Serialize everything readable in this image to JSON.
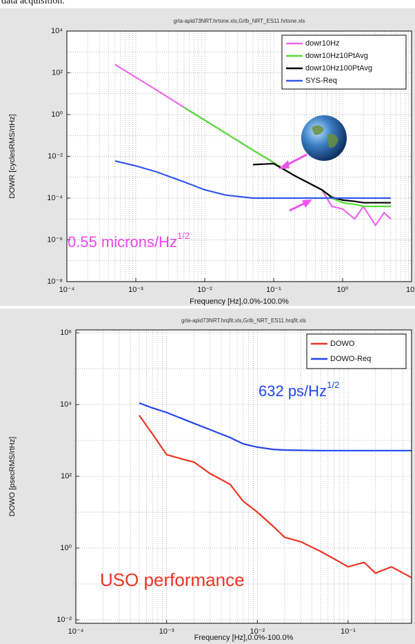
{
  "top_text": "data acquisition.",
  "chart_data": [
    {
      "type": "line",
      "title": "grla-apid73NRT.hrtone.xls,Grlb_NRT_ES11.hrtone.xls",
      "xlabel": "Frequency [Hz],0.0%-100.0%",
      "ylabel": "DOWR [cyclesRMS/rtHz]",
      "xscale": "log",
      "yscale": "log",
      "grid": true,
      "legend": "top-right",
      "xlim": [
        0.0001,
        10
      ],
      "ylim": [
        1e-08,
        10000
      ],
      "xticks": [
        {
          "value": 0.0001,
          "label": "10⁻⁴"
        },
        {
          "value": 0.001,
          "label": "10⁻³"
        },
        {
          "value": 0.01,
          "label": "10⁻²"
        },
        {
          "value": 0.1,
          "label": "10⁻¹"
        },
        {
          "value": 1,
          "label": "10⁰"
        },
        {
          "value": 10,
          "label": "10¹"
        }
      ],
      "yticks": [
        {
          "value": 1e-08,
          "label": "10⁻⁸"
        },
        {
          "value": 1e-06,
          "label": "10⁻⁶"
        },
        {
          "value": 0.0001,
          "label": "10⁻⁴"
        },
        {
          "value": 0.01,
          "label": "10⁻²"
        },
        {
          "value": 1,
          "label": "10⁰"
        },
        {
          "value": 100,
          "label": "10²"
        },
        {
          "value": 10000,
          "label": "10⁴"
        }
      ],
      "x": [
        0.0005,
        0.001,
        0.002,
        0.005,
        0.01,
        0.02,
        0.05,
        0.1,
        0.2,
        0.5,
        0.7,
        1,
        1.5,
        2,
        3,
        4,
        5
      ],
      "series": [
        {
          "name": "dowr10Hz",
          "color": "#ee66ee",
          "values": [
            251,
            61,
            15,
            2.2,
            0.54,
            0.13,
            0.02,
            0.005,
            0.0012,
            0.00025,
            4e-05,
            3e-05,
            1e-05,
            4e-05,
            5e-06,
            2e-05,
            1e-05
          ]
        },
        {
          "name": "dowr10Hz10PtAvg",
          "color": "#55dd33",
          "values": [
            null,
            null,
            null,
            2.2,
            0.54,
            0.13,
            0.02,
            0.005,
            0.0012,
            0.00025,
            0.0001,
            6e-05,
            5e-05,
            4e-05,
            4e-05,
            4e-05,
            4e-05
          ]
        },
        {
          "name": "dowr10Hz100PtAvg",
          "color": "#000000",
          "values": [
            null,
            null,
            null,
            null,
            null,
            null,
            0.004,
            0.0045,
            0.0012,
            0.00025,
            0.00011,
            8e-05,
            7e-05,
            6e-05,
            6e-05,
            6e-05,
            6e-05
          ]
        },
        {
          "name": "SYS-Req",
          "color": "#3355ee",
          "values": [
            0.006,
            0.0035,
            0.0018,
            0.0006,
            0.00025,
            0.00014,
            0.0001,
            0.0001,
            0.0001,
            0.0001,
            0.0001,
            0.0001,
            0.0001,
            0.0001,
            0.0001,
            0.0001,
            0.0001
          ]
        }
      ],
      "annotations": [
        {
          "text": "0.55 microns/Hz",
          "superscript": "1/2",
          "color": "#ee44ee"
        }
      ]
    },
    {
      "type": "line",
      "title": "grla-apid73NRT.hrqfit.xls,Grlb_NRT_ES11.hrqfit.xls",
      "xlabel": "Frequency [Hz],0.0%-100.0%",
      "ylabel": "DOWO [psecRMS/rtHz]",
      "xscale": "log",
      "yscale": "log",
      "grid": true,
      "legend": "top-right",
      "xlim": [
        0.0001,
        0.5
      ],
      "ylim": [
        0.008,
        1200000
      ],
      "xticks": [
        {
          "value": 0.0001,
          "label": "10⁻⁴"
        },
        {
          "value": 0.001,
          "label": "10⁻³"
        },
        {
          "value": 0.01,
          "label": "10⁻²"
        },
        {
          "value": 0.1,
          "label": "10⁻¹"
        }
      ],
      "yticks": [
        {
          "value": 0.01,
          "label": "10⁻²"
        },
        {
          "value": 1,
          "label": "10⁰"
        },
        {
          "value": 100,
          "label": "10²"
        },
        {
          "value": 10000,
          "label": "10⁴"
        },
        {
          "value": 1000000,
          "label": "10⁶"
        }
      ],
      "x": [
        0.0005,
        0.0007,
        0.001,
        0.0015,
        0.002,
        0.003,
        0.005,
        0.007,
        0.01,
        0.015,
        0.02,
        0.03,
        0.05,
        0.07,
        0.1,
        0.15,
        0.2,
        0.3,
        0.5
      ],
      "series": [
        {
          "name": "DOWO",
          "color": "#ee3322",
          "values": [
            5000,
            1500,
            400,
            300,
            250,
            120,
            60,
            20,
            10,
            4,
            2,
            1.5,
            0.8,
            0.5,
            0.3,
            0.4,
            0.2,
            0.3,
            0.15
          ]
        },
        {
          "name": "DOWO-Req",
          "color": "#2244ee",
          "values": [
            11000,
            8000,
            6000,
            4000,
            3000,
            2000,
            1200,
            800,
            650,
            560,
            540,
            530,
            520,
            520,
            520,
            520,
            520,
            520,
            520
          ]
        }
      ],
      "annotations": [
        {
          "text": "632 ps/Hz",
          "superscript": "1/2",
          "color": "#2244ee"
        },
        {
          "text": "USO performance",
          "color": "#ee3322"
        }
      ]
    }
  ]
}
